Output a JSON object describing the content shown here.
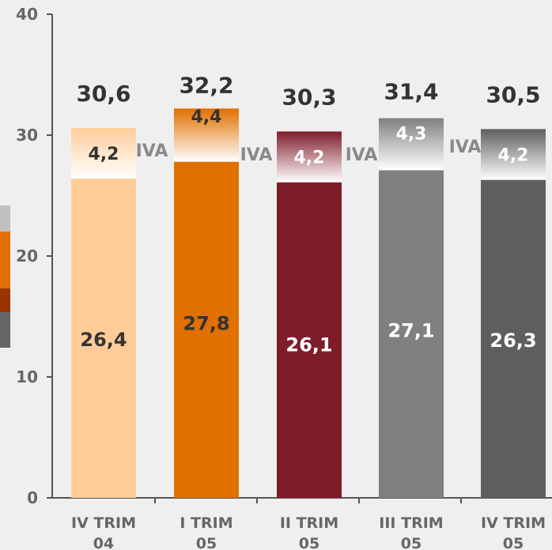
{
  "chart_data": {
    "type": "bar",
    "stacked": true,
    "categories": [
      [
        "IV TRIM",
        "04"
      ],
      [
        "I TRIM",
        "05"
      ],
      [
        "II TRIM",
        "05"
      ],
      [
        "III TRIM",
        "05"
      ],
      [
        "IV TRIM",
        "05"
      ]
    ],
    "series": [
      {
        "values": [
          26.4,
          27.8,
          26.1,
          27.1,
          26.3
        ]
      },
      {
        "name": "IVA",
        "values": [
          4.2,
          4.4,
          4.2,
          4.3,
          4.2
        ]
      }
    ],
    "totals": [
      30.6,
      32.2,
      30.3,
      31.4,
      30.5
    ],
    "base_labels": [
      "26,4",
      "27,8",
      "26,1",
      "27,1",
      "26,3"
    ],
    "iva_labels": [
      "4,2",
      "4,4",
      "4,2",
      "4,3",
      "4,2"
    ],
    "total_labels": [
      "30,6",
      "32,2",
      "30,3",
      "31,4",
      "30,5"
    ],
    "iva_text": "IVA",
    "y_ticks": [
      "0",
      "10",
      "20",
      "30",
      "40"
    ],
    "ylim": [
      0,
      40
    ],
    "grid": false,
    "colors": {
      "bars": [
        "#ffcc99",
        "#e07000",
        "#7f1c2a",
        "#808080",
        "#5e5e5e"
      ],
      "base_label": [
        "#333333",
        "#333333",
        "#ffffff",
        "#ffffff",
        "#ffffff"
      ],
      "iva_label": [
        "#333333",
        "#333333",
        "#ffffff",
        "#ffffff",
        "#ffffff"
      ],
      "axis": "#555555",
      "tick_label": "#666666",
      "total_label": "#333333",
      "background": "#efefef",
      "legend_swatches": [
        "#c0c0c0",
        "#e07000",
        "#9a3400",
        "#666666"
      ]
    }
  }
}
